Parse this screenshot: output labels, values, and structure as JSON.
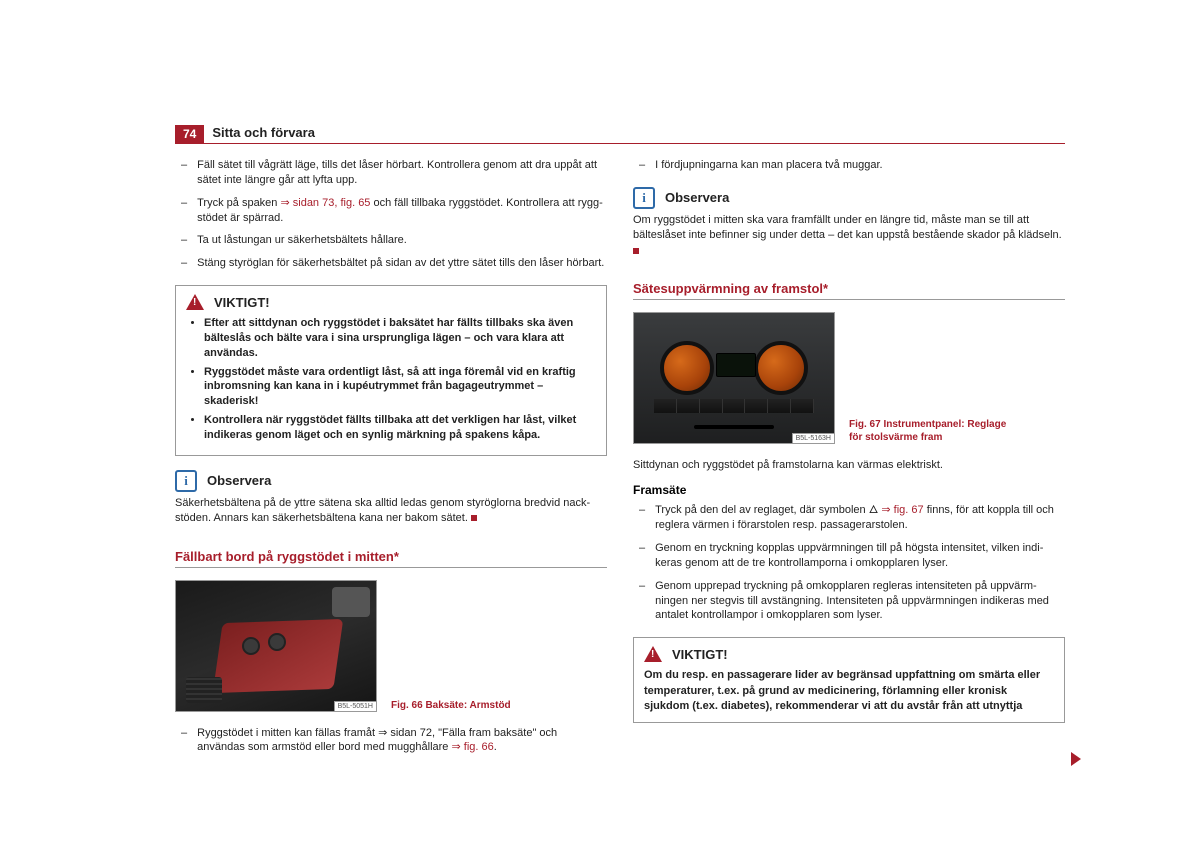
{
  "page_number": "74",
  "header_title": "Sitta och förvara",
  "colors": {
    "accent": "#a71e2b",
    "info_icon": "#2e6aa8",
    "border": "#999999",
    "text": "#222222",
    "background": "#ffffff"
  },
  "left": {
    "top_list": [
      "Fäll sätet till vågrätt läge, tills det låser hörbart. Kontrollera genom att dra uppåt att sätet inte längre går att lyfta upp.",
      "__LINK__",
      "Ta ut låstungan ur säkerhetsbältets hållare.",
      "Stäng styröglan för säkerhetsbältet på sidan av det yttre sätet tills den låser hörbart."
    ],
    "top_list_item2": {
      "before": "Tryck på spaken ",
      "ref": "⇒ sidan 73, fig. 65",
      "after": " och fäll tillbaka ryggstödet. Kontrollera att rygg­stödet är spärrad."
    },
    "warn1_title": "VIKTIGT!",
    "warn1_items": [
      "Efter att sittdynan och ryggstödet i baksätet har fällts tillbaks ska även bälteslås och bälte vara i sina ursprungliga lägen – och vara klara att användas.",
      "Ryggstödet måste vara ordentligt låst, så att inga föremål vid en kraftig inbromsning kan kana in i kupéutrymmet från bagageutrymmet – skaderisk!",
      "Kontrollera när ryggstödet fällts tillbaka att det verkligen har låst, vilket indikeras genom läget och en synlig märkning på spakens kåpa."
    ],
    "obs1_title": "Observera",
    "obs1_text": "Säkerhetsbältena på de yttre sätena ska alltid ledas genom styröglorna bredvid nack­stöden. Annars kan säkerhetsbältena kana ner bakom sätet.",
    "section1_title": "Fällbart bord på ryggstödet i mitten*",
    "fig66_num": "B5L-5051H",
    "fig66_caption": "Fig. 66  Baksäte: Armstöd",
    "p_fig66": {
      "before": "Ryggstödet i mitten kan fällas framåt ⇒ sidan 72, \"Fälla fram baksäte\" och användas som armstöd eller bord med mugghållare ",
      "ref": "⇒ fig. 66",
      "after": "."
    }
  },
  "right": {
    "top_item": "I fördjupningarna kan man placera två muggar.",
    "obs2_title": "Observera",
    "obs2_text": "Om ryggstödet i mitten ska vara framfällt under en längre tid, måste man se till att bälteslåset inte befinner sig under detta – det kan uppstå bestående skador på klädseln.",
    "section2_title": "Sätesuppvärmning av framstol*",
    "fig67_num": "B5L-5163H",
    "fig67_caption": "Fig. 67  Instrumentpanel: Reglage för stolsvärme fram",
    "intro": "Sittdynan och ryggstödet på framstolarna kan värmas elektriskt.",
    "sub": "Framsäte",
    "steps": [
      "__LINK__",
      "Genom en tryckning kopplas uppvärmningen till på högsta intensitet, vilken indi­keras genom att de tre kontrollamporna i omkopplaren lyser.",
      "Genom upprepad tryckning på omkopplaren regleras intensiteten på uppvärm­ningen ner stegvis till avstängning. Intensiteten på uppvärmningen indikeras med antalet kontrollampor i omkopplaren som lyser."
    ],
    "step1": {
      "before": "Tryck på den del av reglaget, där symbolen 🜂 ",
      "ref": "⇒ fig. 67",
      "after": " finns, för att koppla till och reglera värmen i förarstolen resp. passagerarstolen."
    },
    "warn2_title": "VIKTIGT!",
    "warn2_text": "Om du resp. en passagerare lider av begränsad uppfattning om smärta eller temperaturer, t.ex. på grund av medicinering, förlamning eller kronisk sjukdom (t.ex. diabetes), rekommenderar vi att du avstår från att utnyttja"
  }
}
